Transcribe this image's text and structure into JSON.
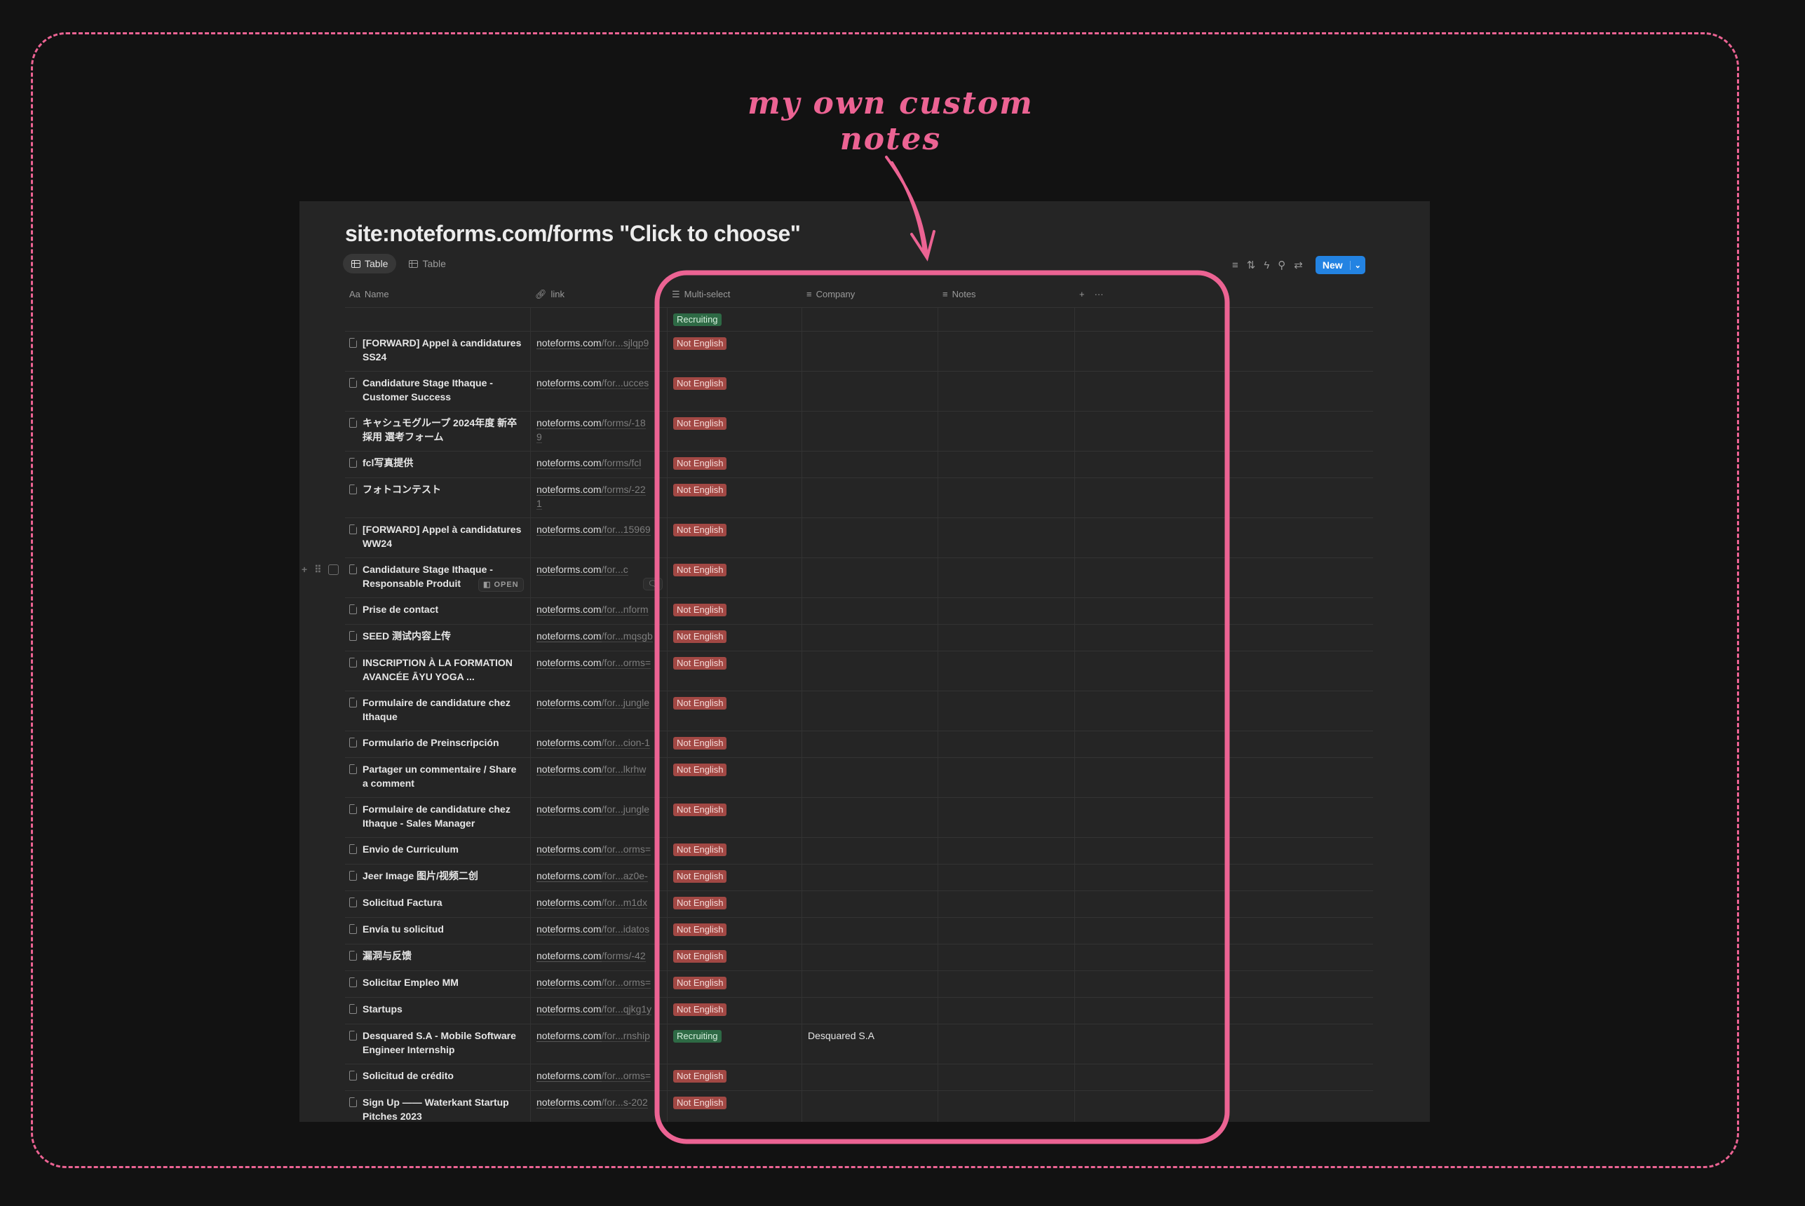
{
  "annotation": {
    "text": "my own custom notes",
    "color": "#ec6393"
  },
  "page": {
    "title": "site:noteforms.com/forms \"Click to choose\"",
    "tabs": [
      {
        "label": "Table",
        "active": true
      },
      {
        "label": "Table",
        "active": false
      }
    ],
    "toolbar": {
      "icons": [
        "filter-icon",
        "sort-icon",
        "automation-icon",
        "search-icon",
        "settings-icon"
      ],
      "new_label": "New"
    },
    "accent": "#2383e2"
  },
  "columns": [
    {
      "label": "Name",
      "icon": "Aa"
    },
    {
      "label": "link",
      "icon": "link-icon"
    },
    {
      "label": "Multi-select",
      "icon": "list-icon"
    },
    {
      "label": "Company",
      "icon": "text-icon"
    },
    {
      "label": "Notes",
      "icon": "text-icon"
    }
  ],
  "add_column": "+",
  "more": "···",
  "tag_colors": {
    "Not English": {
      "bg": "#a24844",
      "fg": "#f4dbd9"
    },
    "Recruiting": {
      "bg": "#2e6a45",
      "fg": "#d6efdd"
    },
    "pending": {
      "bg": "#8a6a1e",
      "fg": "#f5e6c0"
    }
  },
  "hover_row": {
    "open_label": "OPEN"
  },
  "rows": [
    {
      "name": "",
      "domain": "",
      "path": "",
      "tag": "Recruiting",
      "company": "",
      "lines": 1
    },
    {
      "name": "[FORWARD] Appel à candidatures SS24",
      "domain": "noteforms.com",
      "path": "/for...sjlqp9",
      "tag": "Not English",
      "company": "",
      "lines": 2
    },
    {
      "name": "Candidature Stage Ithaque - Customer Success",
      "domain": "noteforms.com",
      "path": "/for...ucces",
      "tag": "Not English",
      "company": "",
      "lines": 2
    },
    {
      "name": "キャシュモグループ 2024年度 新卒採用 選考フォーム",
      "domain": "noteforms.com",
      "path": "/forms/-18",
      "path2": "9",
      "tag": "Not English",
      "company": "",
      "lines": 2
    },
    {
      "name": "fcl写真提供",
      "domain": "noteforms.com",
      "path": "/forms/fcl",
      "tag": "Not English",
      "company": "",
      "lines": 1
    },
    {
      "name": "フォトコンテスト",
      "domain": "noteforms.com",
      "path": "/forms/-22",
      "path2": "1",
      "tag": "Not English",
      "company": "",
      "lines": 2
    },
    {
      "name": "[FORWARD] Appel à candidatures WW24",
      "domain": "noteforms.com",
      "path": "/for...15969",
      "tag": "Not English",
      "company": "",
      "lines": 2
    },
    {
      "name": "Candidature Stage Ithaque - Responsable Produit",
      "domain": "noteforms.com",
      "path": "/for...c",
      "tag": "Not English",
      "company": "",
      "lines": 2,
      "hover": true
    },
    {
      "name": "Prise de contact",
      "domain": "noteforms.com",
      "path": "/for...nform",
      "tag": "Not English",
      "company": "",
      "lines": 1
    },
    {
      "name": "SEED 测试内容上传",
      "domain": "noteforms.com",
      "path": "/for...mqsgb",
      "tag": "Not English",
      "company": "",
      "lines": 1
    },
    {
      "name": "INSCRIPTION À LA FORMATION AVANCÉE ĀYU YOGA ...",
      "domain": "noteforms.com",
      "path": "/for...orms=",
      "tag": "Not English",
      "company": "",
      "lines": 2
    },
    {
      "name": "Formulaire de candidature chez Ithaque",
      "domain": "noteforms.com",
      "path": "/for...jungle",
      "tag": "Not English",
      "company": "",
      "lines": 2
    },
    {
      "name": "Formulario de Preinscripción",
      "domain": "noteforms.com",
      "path": "/for...cion-1",
      "tag": "Not English",
      "company": "",
      "lines": 1
    },
    {
      "name": "Partager un commentaire / Share a comment",
      "domain": "noteforms.com",
      "path": "/for...lkrhw",
      "tag": "Not English",
      "company": "",
      "lines": 2
    },
    {
      "name": "Formulaire de candidature chez Ithaque - Sales Manager",
      "domain": "noteforms.com",
      "path": "/for...jungle",
      "tag": "Not English",
      "company": "",
      "lines": 2
    },
    {
      "name": "Envio de Curriculum",
      "domain": "noteforms.com",
      "path": "/for...orms=",
      "tag": "Not English",
      "company": "",
      "lines": 1
    },
    {
      "name": "Jeer Image 图片/视频二创",
      "domain": "noteforms.com",
      "path": "/for...az0e-",
      "tag": "Not English",
      "company": "",
      "lines": 1
    },
    {
      "name": "Solicitud Factura",
      "domain": "noteforms.com",
      "path": "/for...m1dx",
      "tag": "Not English",
      "company": "",
      "lines": 1
    },
    {
      "name": "Envía tu solicitud",
      "domain": "noteforms.com",
      "path": "/for...idatos",
      "tag": "Not English",
      "company": "",
      "lines": 1
    },
    {
      "name": "漏洞与反馈",
      "domain": "noteforms.com",
      "path": "/forms/-42",
      "tag": "Not English",
      "company": "",
      "lines": 1
    },
    {
      "name": "Solicitar Empleo MM",
      "domain": "noteforms.com",
      "path": "/for...orms=",
      "tag": "Not English",
      "company": "",
      "lines": 1
    },
    {
      "name": "Startups",
      "domain": "noteforms.com",
      "path": "/for...qjkg1y",
      "tag": "Not English",
      "company": "",
      "lines": 1
    },
    {
      "name": "Desquared S.A - Mobile Software Engineer Internship",
      "domain": "noteforms.com",
      "path": "/for...rnship",
      "tag": "Recruiting",
      "company": "Desquared S.A",
      "lines": 2
    },
    {
      "name": "Solicitud de crédito",
      "domain": "noteforms.com",
      "path": "/for...orms=",
      "tag": "Not English",
      "company": "",
      "lines": 1
    },
    {
      "name": "Sign Up —— Waterkant Startup Pitches 2023",
      "domain": "noteforms.com",
      "path": "/for...s-202",
      "tag": "Not English",
      "company": "",
      "lines": 2
    },
    {
      "name": "",
      "domain": "",
      "path": "",
      "tag": "",
      "tag_color": "pending",
      "company": "",
      "lines": 1
    }
  ]
}
